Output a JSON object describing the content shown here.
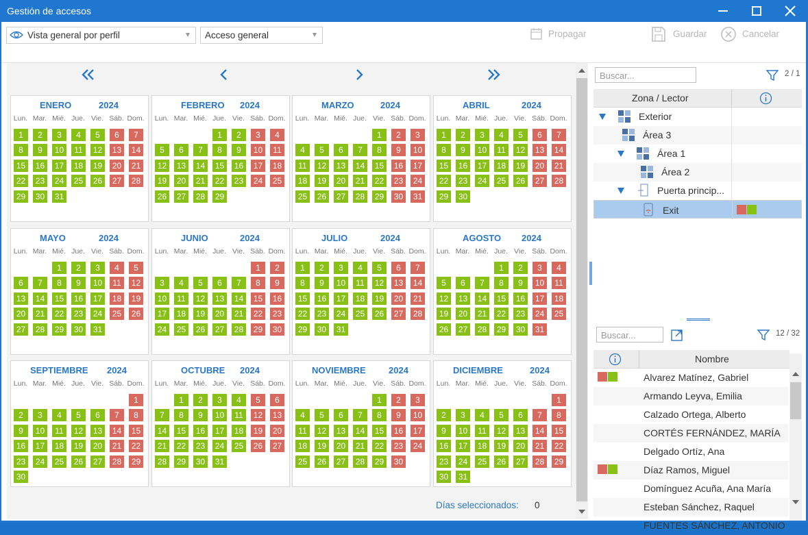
{
  "window": {
    "title": "Gestión de accesos"
  },
  "toolbar": {
    "view_select": "Vista general por perfil",
    "access_select": "Acceso general",
    "propagate": "Propagar",
    "save": "Guardar",
    "cancel": "Cancelar"
  },
  "calendar": {
    "weekdays": [
      "Lun.",
      "Mar.",
      "Mié.",
      "Jue.",
      "Vie.",
      "Sáb.",
      "Dom."
    ],
    "year": "2024",
    "months": [
      {
        "name": "ENERO",
        "offset": 0,
        "days": 31,
        "red": [
          6,
          7,
          13,
          14,
          20,
          21,
          27,
          28
        ]
      },
      {
        "name": "FEBRERO",
        "offset": 3,
        "days": 29,
        "red": [
          3,
          4,
          10,
          11,
          17,
          18,
          24,
          25
        ]
      },
      {
        "name": "MARZO",
        "offset": 4,
        "days": 31,
        "red": [
          2,
          3,
          9,
          10,
          16,
          17,
          23,
          24,
          30,
          31
        ]
      },
      {
        "name": "ABRIL",
        "offset": 0,
        "days": 30,
        "red": [
          6,
          7,
          13,
          14,
          20,
          21,
          27,
          28
        ]
      },
      {
        "name": "MAYO",
        "offset": 2,
        "days": 31,
        "red": [
          4,
          5,
          11,
          12,
          18,
          19,
          25,
          26
        ]
      },
      {
        "name": "JUNIO",
        "offset": 5,
        "days": 30,
        "red": [
          1,
          2,
          8,
          9,
          15,
          16,
          22,
          23,
          29,
          30
        ]
      },
      {
        "name": "JULIO",
        "offset": 0,
        "days": 31,
        "red": [
          6,
          7,
          13,
          14,
          20,
          21,
          27,
          28
        ]
      },
      {
        "name": "AGOSTO",
        "offset": 3,
        "days": 31,
        "red": [
          3,
          4,
          10,
          11,
          17,
          18,
          24,
          25,
          31
        ]
      },
      {
        "name": "SEPTIEMBRE",
        "offset": 6,
        "days": 30,
        "red": [
          1,
          7,
          8,
          14,
          15,
          21,
          22,
          28,
          29
        ]
      },
      {
        "name": "OCTUBRE",
        "offset": 1,
        "days": 31,
        "red": [
          5,
          6,
          12,
          13,
          19,
          20,
          26,
          27
        ]
      },
      {
        "name": "NOVIEMBRE",
        "offset": 4,
        "days": 30,
        "red": [
          2,
          3,
          9,
          10,
          16,
          17,
          23,
          24,
          30
        ]
      },
      {
        "name": "DICIEMBRE",
        "offset": 6,
        "days": 31,
        "red": [
          1,
          7,
          8,
          14,
          15,
          21,
          22,
          28,
          29
        ]
      }
    ],
    "selected_days_label": "Días seleccionados:",
    "selected_days_value": "0",
    "colors": {
      "allowed": "#88c016",
      "denied": "#d8695e",
      "accent": "#2a78c5"
    }
  },
  "zones": {
    "search_placeholder": "Buscar...",
    "count": "2 / 1",
    "col_zone": "Zona / Lector",
    "rows": [
      {
        "label": "Exterior"
      },
      {
        "label": "Área 3"
      },
      {
        "label": "Área 1"
      },
      {
        "label": "Área 2"
      },
      {
        "label": "Puerta princip..."
      },
      {
        "label": "Exit"
      }
    ]
  },
  "people": {
    "search_placeholder": "Buscar...",
    "count": "12 / 32",
    "col_name": "Nombre",
    "rows": [
      {
        "name": "Alvarez Matínez, Gabriel"
      },
      {
        "name": "Armando Leyva, Emilia"
      },
      {
        "name": "Calzado Ortega, Alberto"
      },
      {
        "name": "CORTÉS FERNÁNDEZ, MARÍA"
      },
      {
        "name": "Delgado Ortíz, Ana"
      },
      {
        "name": "Díaz Ramos, Miguel"
      },
      {
        "name": "Domínguez Acuña, Ana María"
      },
      {
        "name": "Esteban Sánchez, Raquel"
      },
      {
        "name": "FUENTES SÁNCHEZ, ANTONIO"
      }
    ]
  }
}
